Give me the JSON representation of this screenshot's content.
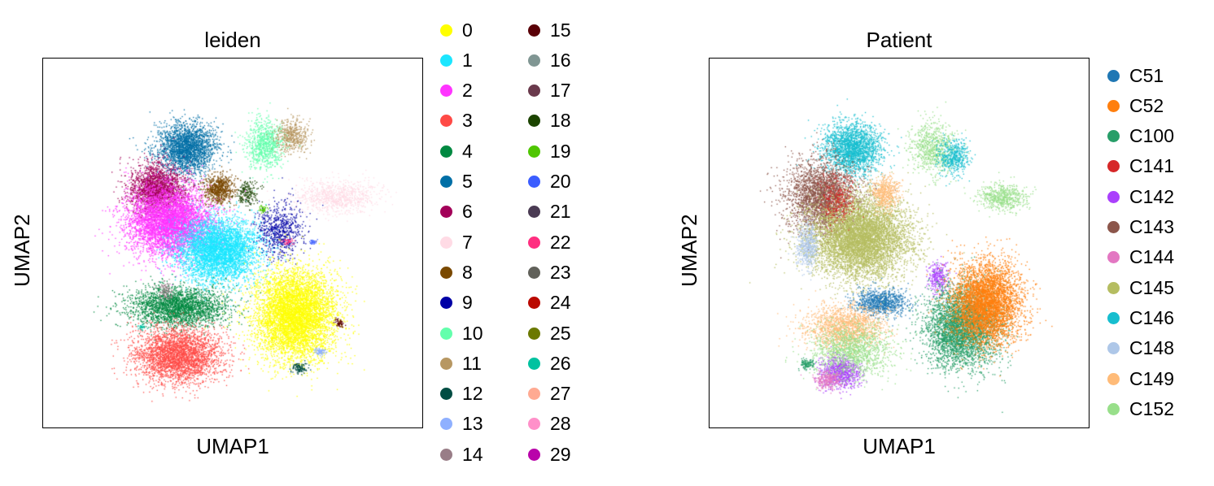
{
  "chart_data": [
    {
      "type": "scatter",
      "title": "leiden",
      "xlabel": "UMAP1",
      "ylabel": "UMAP2",
      "legend_placement": "right",
      "legend_title": "",
      "grid": false,
      "ticks": false,
      "series": [
        {
          "name": "0",
          "color": "#ffff00"
        },
        {
          "name": "1",
          "color": "#1ce6ff"
        },
        {
          "name": "2",
          "color": "#ff34ff"
        },
        {
          "name": "3",
          "color": "#ff4a46"
        },
        {
          "name": "4",
          "color": "#008941"
        },
        {
          "name": "5",
          "color": "#006fa6"
        },
        {
          "name": "6",
          "color": "#a30059"
        },
        {
          "name": "7",
          "color": "#ffdbe5"
        },
        {
          "name": "8",
          "color": "#7a4900"
        },
        {
          "name": "9",
          "color": "#0000a6"
        },
        {
          "name": "10",
          "color": "#63ffac"
        },
        {
          "name": "11",
          "color": "#b79762"
        },
        {
          "name": "12",
          "color": "#004d43"
        },
        {
          "name": "13",
          "color": "#8fb0ff"
        },
        {
          "name": "14",
          "color": "#997d87"
        },
        {
          "name": "15",
          "color": "#5a0007"
        },
        {
          "name": "16",
          "color": "#809693"
        },
        {
          "name": "17",
          "color": "#6a3a4c"
        },
        {
          "name": "18",
          "color": "#1b4400"
        },
        {
          "name": "19",
          "color": "#4fc601"
        },
        {
          "name": "20",
          "color": "#3b5dff"
        },
        {
          "name": "21",
          "color": "#4a3b53"
        },
        {
          "name": "22",
          "color": "#ff2f80"
        },
        {
          "name": "23",
          "color": "#61615a"
        },
        {
          "name": "24",
          "color": "#ba0900"
        },
        {
          "name": "25",
          "color": "#6b7900"
        },
        {
          "name": "26",
          "color": "#00c2a0"
        },
        {
          "name": "27",
          "color": "#ffaa92"
        },
        {
          "name": "28",
          "color": "#ff90c9"
        },
        {
          "name": "29",
          "color": "#b903aa"
        }
      ]
    },
    {
      "type": "scatter",
      "title": "Patient",
      "xlabel": "UMAP1",
      "ylabel": "UMAP2",
      "legend_placement": "right",
      "grid": false,
      "ticks": false,
      "series": [
        {
          "name": "C51",
          "color": "#1f77b4"
        },
        {
          "name": "C52",
          "color": "#ff7f0e"
        },
        {
          "name": "C100",
          "color": "#279e68"
        },
        {
          "name": "C141",
          "color": "#d62728"
        },
        {
          "name": "C142",
          "color": "#aa40fc"
        },
        {
          "name": "C143",
          "color": "#8c564b"
        },
        {
          "name": "C144",
          "color": "#e377c2"
        },
        {
          "name": "C145",
          "color": "#b5bd61"
        },
        {
          "name": "C146",
          "color": "#17becf"
        },
        {
          "name": "C148",
          "color": "#aec7e8"
        },
        {
          "name": "C149",
          "color": "#ffbb78"
        },
        {
          "name": "C152",
          "color": "#98df8a"
        }
      ]
    }
  ]
}
